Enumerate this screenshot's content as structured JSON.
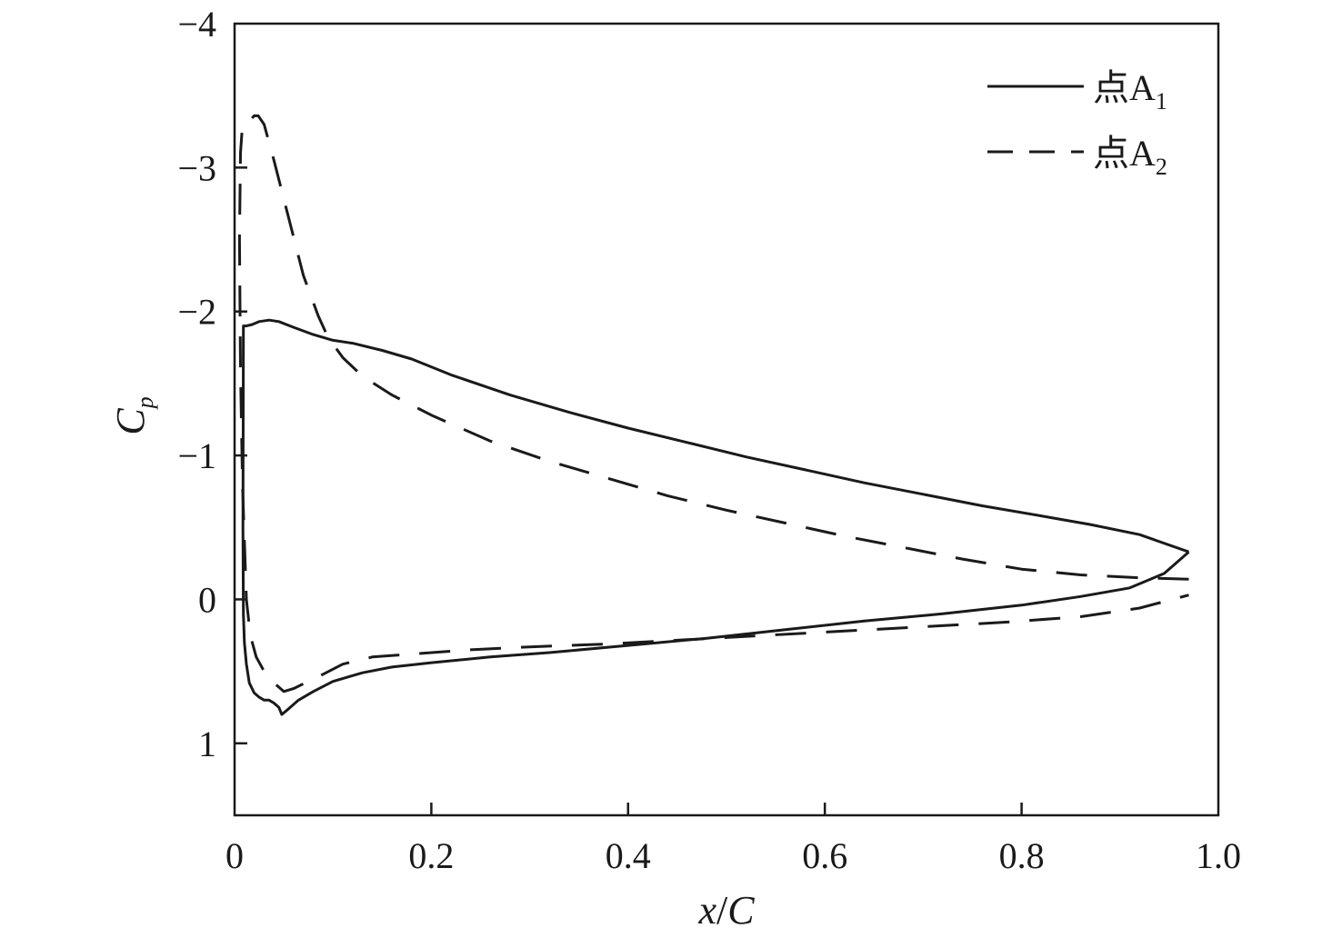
{
  "chart_data": {
    "type": "line",
    "xlabel": {
      "main": "x",
      "sep": "/",
      "tail": "C"
    },
    "ylabel": {
      "main": "C",
      "sub": "p"
    },
    "xlim": [
      0,
      1.0
    ],
    "ylim": [
      -4,
      1.5
    ],
    "y_inverted": true,
    "grid": false,
    "legend_position": "top-right",
    "x_ticks": [
      {
        "value": 0,
        "label": "0"
      },
      {
        "value": 0.2,
        "label": "0.2"
      },
      {
        "value": 0.4,
        "label": "0.4"
      },
      {
        "value": 0.6,
        "label": "0.6"
      },
      {
        "value": 0.8,
        "label": "0.8"
      },
      {
        "value": 1.0,
        "label": "1.0"
      }
    ],
    "y_ticks": [
      {
        "value": -4,
        "label": "−4"
      },
      {
        "value": -3,
        "label": "−3"
      },
      {
        "value": -2,
        "label": "−2"
      },
      {
        "value": -1,
        "label": "−1"
      },
      {
        "value": 0,
        "label": "0"
      },
      {
        "value": 1,
        "label": "1"
      }
    ],
    "series": [
      {
        "name": {
          "main": "点A",
          "sub": "1"
        },
        "style": "solid",
        "color": "#1a1a1a",
        "x": [
          0.97,
          0.92,
          0.87,
          0.82,
          0.76,
          0.7,
          0.64,
          0.58,
          0.52,
          0.46,
          0.4,
          0.34,
          0.28,
          0.22,
          0.18,
          0.15,
          0.12,
          0.1,
          0.08,
          0.06,
          0.045,
          0.035,
          0.025,
          0.018,
          0.012,
          0.01,
          0.009,
          0.0085,
          0.009,
          0.01,
          0.012,
          0.015,
          0.02,
          0.025,
          0.03,
          0.035,
          0.04,
          0.045,
          0.048,
          0.055,
          0.065,
          0.08,
          0.1,
          0.13,
          0.16,
          0.2,
          0.26,
          0.32,
          0.4,
          0.48,
          0.56,
          0.64,
          0.72,
          0.8,
          0.86,
          0.91,
          0.945,
          0.97
        ],
        "y": [
          -0.33,
          -0.45,
          -0.52,
          -0.58,
          -0.65,
          -0.73,
          -0.81,
          -0.9,
          -0.99,
          -1.09,
          -1.19,
          -1.3,
          -1.42,
          -1.56,
          -1.67,
          -1.73,
          -1.78,
          -1.8,
          -1.84,
          -1.89,
          -1.93,
          -1.94,
          -1.93,
          -1.91,
          -1.9,
          -1.9,
          -1.9,
          -0.5,
          0.1,
          0.3,
          0.45,
          0.58,
          0.65,
          0.68,
          0.7,
          0.7,
          0.72,
          0.75,
          0.8,
          0.76,
          0.7,
          0.64,
          0.57,
          0.51,
          0.47,
          0.44,
          0.4,
          0.37,
          0.32,
          0.27,
          0.21,
          0.15,
          0.1,
          0.04,
          -0.02,
          -0.08,
          -0.18,
          -0.33
        ]
      },
      {
        "name": {
          "main": "点A",
          "sub": "2"
        },
        "style": "dashed",
        "color": "#1a1a1a",
        "x": [
          0.97,
          0.92,
          0.86,
          0.8,
          0.74,
          0.68,
          0.62,
          0.56,
          0.5,
          0.44,
          0.38,
          0.32,
          0.26,
          0.2,
          0.16,
          0.13,
          0.11,
          0.095,
          0.085,
          0.07,
          0.055,
          0.04,
          0.03,
          0.024,
          0.02,
          0.016,
          0.012,
          0.008,
          0.006,
          0.005,
          0.006,
          0.008,
          0.012,
          0.016,
          0.022,
          0.03,
          0.04,
          0.05,
          0.06,
          0.075,
          0.09,
          0.11,
          0.14,
          0.18,
          0.24,
          0.3,
          0.38,
          0.46,
          0.54,
          0.62,
          0.7,
          0.78,
          0.86,
          0.92,
          0.97
        ],
        "y": [
          -0.14,
          -0.15,
          -0.17,
          -0.21,
          -0.28,
          -0.36,
          -0.44,
          -0.53,
          -0.62,
          -0.72,
          -0.84,
          -0.96,
          -1.1,
          -1.28,
          -1.42,
          -1.55,
          -1.68,
          -1.82,
          -1.97,
          -2.25,
          -2.65,
          -3.05,
          -3.3,
          -3.36,
          -3.36,
          -3.33,
          -3.32,
          -3.3,
          -3.1,
          -2.5,
          -1.6,
          -0.8,
          0.0,
          0.25,
          0.4,
          0.5,
          0.58,
          0.64,
          0.62,
          0.57,
          0.52,
          0.45,
          0.4,
          0.38,
          0.35,
          0.33,
          0.31,
          0.28,
          0.25,
          0.22,
          0.19,
          0.16,
          0.12,
          0.06,
          -0.03
        ]
      }
    ]
  }
}
